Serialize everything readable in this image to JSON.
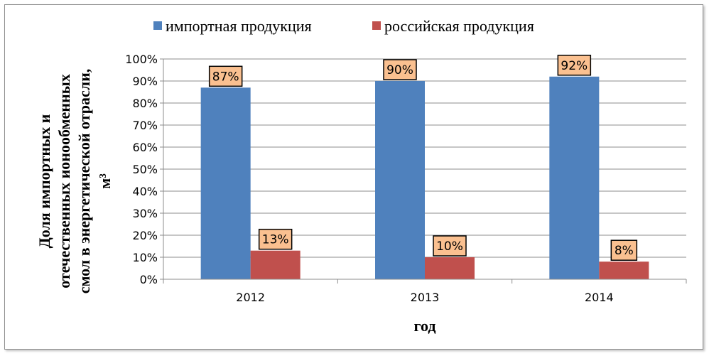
{
  "chart_data": {
    "type": "bar",
    "categories": [
      "2012",
      "2013",
      "2014"
    ],
    "series": [
      {
        "name": "импортная продукция",
        "values": [
          87,
          90,
          92
        ],
        "labels": [
          "87%",
          "90%",
          "92%"
        ],
        "color": "#4f81bd"
      },
      {
        "name": "российская продукция",
        "values": [
          13,
          10,
          8
        ],
        "labels": [
          "13%",
          "10%",
          "8%"
        ],
        "color": "#c0504d"
      }
    ],
    "xlabel": "год",
    "ylabel_lines": [
      "Доля импортных и",
      "отечественных ионообменных",
      "смол в энергетической отрасли,",
      "м³"
    ],
    "ylim": [
      0,
      100
    ],
    "yticks": [
      "0%",
      "10%",
      "20%",
      "30%",
      "40%",
      "50%",
      "60%",
      "70%",
      "80%",
      "90%",
      "100%"
    ],
    "legend_position": "top",
    "grid": true,
    "label_box_color": "#fac090"
  }
}
